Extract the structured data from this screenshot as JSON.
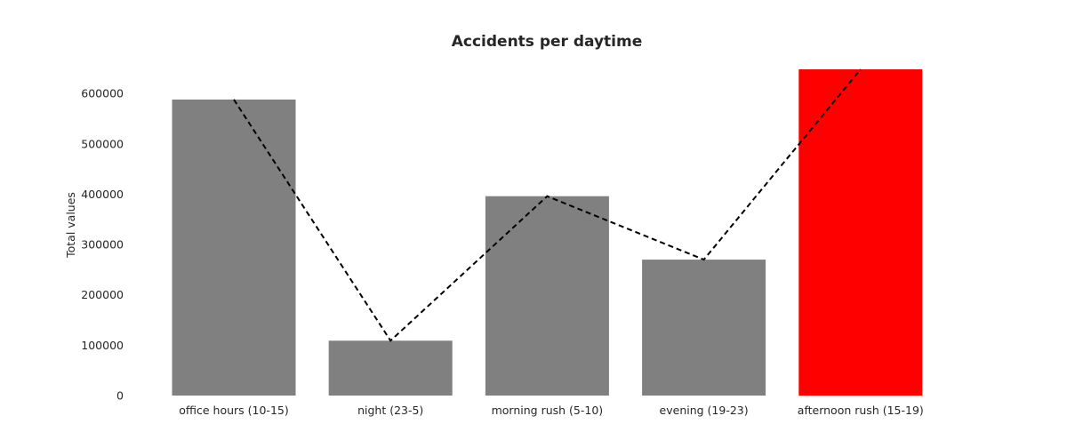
{
  "chart_data": {
    "type": "bar",
    "title": "Accidents per daytime",
    "xlabel": "",
    "ylabel": "Total values",
    "categories": [
      "office hours (10-15)",
      "night (23-5)",
      "morning rush (5-10)",
      "evening (19-23)",
      "afternoon rush (15-19)"
    ],
    "series": [
      {
        "type": "bar",
        "values": [
          588000,
          109000,
          396000,
          270000,
          648000
        ],
        "colors": [
          "#808080",
          "#808080",
          "#808080",
          "#808080",
          "#ff0000"
        ]
      },
      {
        "type": "line",
        "style": "dashed",
        "color": "#000000",
        "values": [
          588000,
          109000,
          396000,
          270000,
          648000
        ]
      }
    ],
    "yticks": [
      0,
      100000,
      200000,
      300000,
      400000,
      500000,
      600000
    ],
    "ytick_labels": [
      "0",
      "100000",
      "200000",
      "300000",
      "400000",
      "500000",
      "600000"
    ],
    "ylim": [
      0,
      648000
    ],
    "grid": false,
    "legend": "none"
  }
}
